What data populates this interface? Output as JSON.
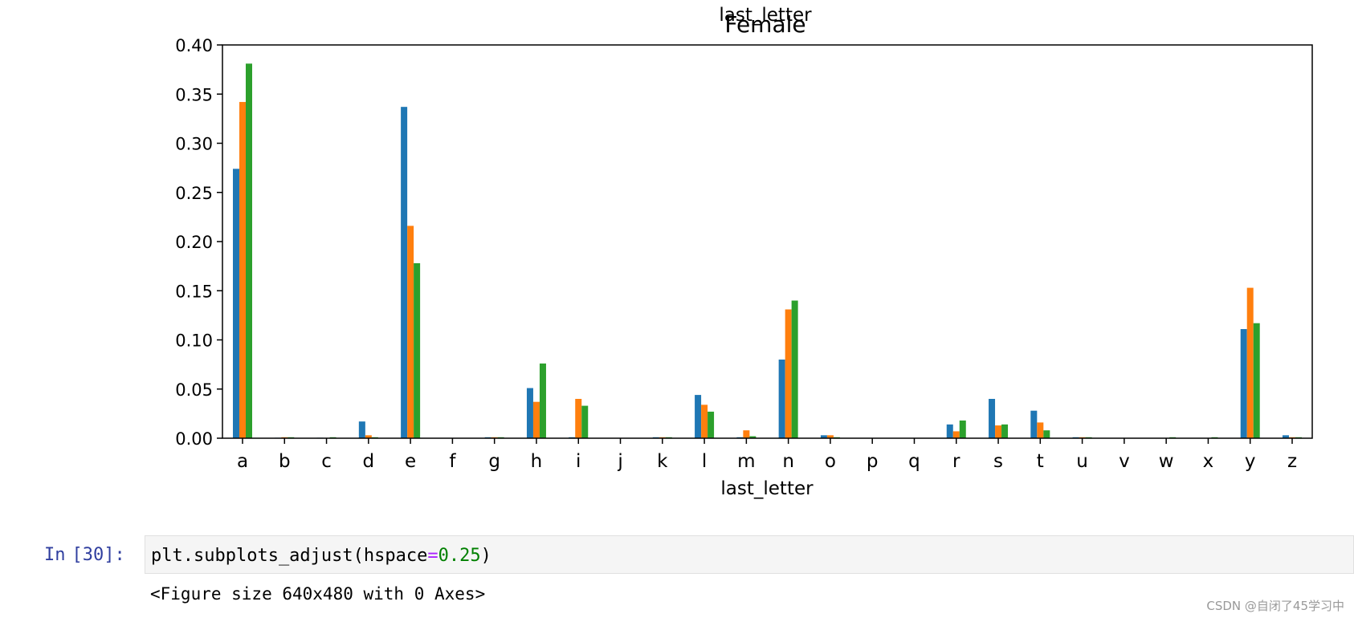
{
  "chart_data": {
    "type": "bar",
    "title": "Female",
    "overlapping_title": "last_letter",
    "xlabel": "last_letter",
    "ylabel": "",
    "ylim": [
      0,
      0.4
    ],
    "yticks": [
      "0.00",
      "0.05",
      "0.10",
      "0.15",
      "0.20",
      "0.25",
      "0.30",
      "0.35",
      "0.40"
    ],
    "grid": false,
    "legend": "none",
    "categories": [
      "a",
      "b",
      "c",
      "d",
      "e",
      "f",
      "g",
      "h",
      "i",
      "j",
      "k",
      "l",
      "m",
      "n",
      "o",
      "p",
      "q",
      "r",
      "s",
      "t",
      "u",
      "v",
      "w",
      "x",
      "y",
      "z"
    ],
    "series": [
      {
        "color": "#1f77b4",
        "values": [
          0.274,
          0.0005,
          0.0005,
          0.017,
          0.337,
          0,
          0.001,
          0.051,
          0.001,
          0,
          0.001,
          0.044,
          0.001,
          0.08,
          0.003,
          0,
          0,
          0.014,
          0.04,
          0.028,
          0.001,
          0,
          0,
          0,
          0.111,
          0.003
        ]
      },
      {
        "color": "#ff7f0e",
        "values": [
          0.342,
          0.001,
          0,
          0.003,
          0.216,
          0,
          0.001,
          0.037,
          0.04,
          0,
          0.001,
          0.034,
          0.008,
          0.131,
          0.003,
          0,
          0,
          0.007,
          0.013,
          0.016,
          0.001,
          0,
          0,
          0,
          0.153,
          0.001
        ]
      },
      {
        "color": "#2ca02c",
        "values": [
          0.381,
          0.001,
          0.001,
          0.001,
          0.178,
          0,
          0.001,
          0.076,
          0.033,
          0,
          0.001,
          0.027,
          0.002,
          0.14,
          0.001,
          0,
          0,
          0.018,
          0.014,
          0.008,
          0.001,
          0,
          0.001,
          0.001,
          0.117,
          0.001
        ]
      }
    ]
  },
  "cell": {
    "prompt_label": "In",
    "prompt_number": "[30]:",
    "code_func": "plt.subplots_adjust(hspace",
    "code_op": "=",
    "code_num": "0.25",
    "code_close": ")",
    "output_text": "<Figure size 640x480 with 0 Axes>"
  },
  "watermark": "CSDN @自闭了45学习中"
}
